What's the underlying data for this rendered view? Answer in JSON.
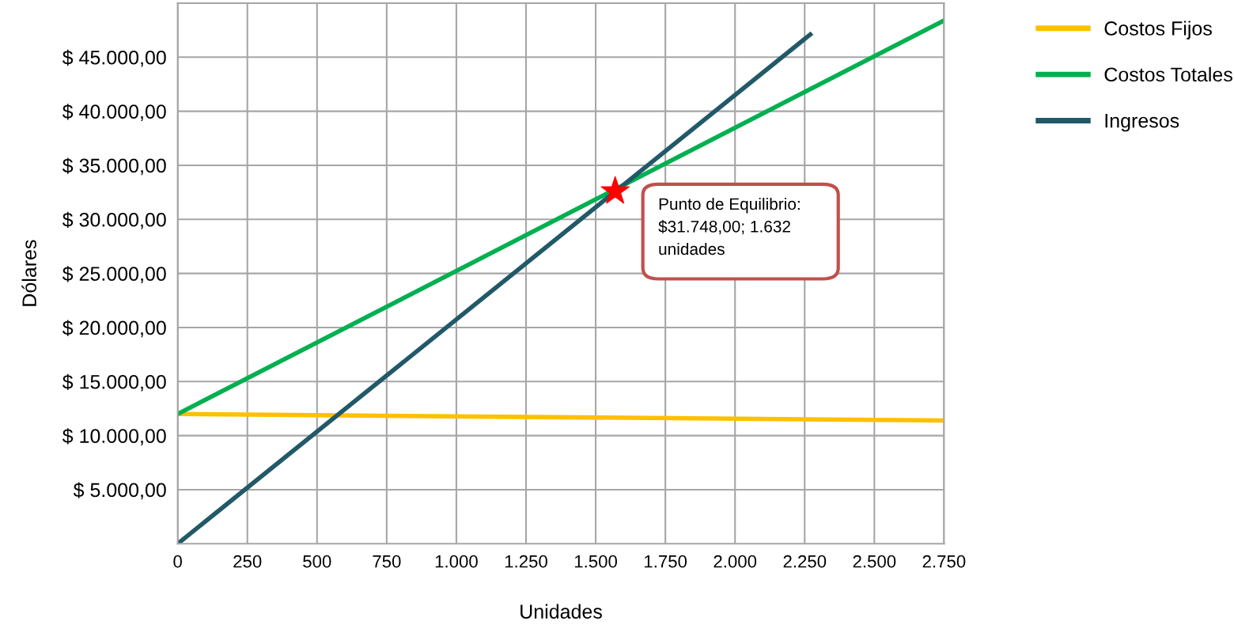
{
  "chart_data": {
    "type": "line",
    "xlabel": "Unidades",
    "ylabel": "Dólares",
    "xlim": [
      0,
      2750
    ],
    "ylim": [
      0,
      50000
    ],
    "xticks": [
      0,
      250,
      500,
      750,
      {
        "value": 1000,
        "label": "1.000"
      },
      {
        "value": 1250,
        "label": "1.250"
      },
      {
        "value": 1500,
        "label": "1.500"
      },
      {
        "value": 1750,
        "label": "1.750"
      },
      {
        "value": 2000,
        "label": "2.000"
      },
      {
        "value": 2250,
        "label": "2.250"
      },
      {
        "value": 2500,
        "label": "2.500"
      },
      {
        "value": 2750,
        "label": "2.750"
      }
    ],
    "yticks": [
      {
        "value": 5000,
        "label": "$ 5.000,00"
      },
      {
        "value": 10000,
        "label": "$ 10.000,00"
      },
      {
        "value": 15000,
        "label": "$ 15.000,00"
      },
      {
        "value": 20000,
        "label": "$ 20.000,00"
      },
      {
        "value": 25000,
        "label": "$ 25.000,00"
      },
      {
        "value": 30000,
        "label": "$ 30.000,00"
      },
      {
        "value": 35000,
        "label": "$ 35.000,00"
      },
      {
        "value": 40000,
        "label": "$ 40.000,00"
      },
      {
        "value": 45000,
        "label": "$ 45.000,00"
      },
      {
        "value": 50000,
        "label": null
      }
    ],
    "series": [
      {
        "name": "Costos Fijos",
        "color": "#ffc000",
        "x": [
          0,
          2750
        ],
        "values": [
          12000,
          11400
        ]
      },
      {
        "name": "Costos Totales",
        "color": "#00b050",
        "x": [
          0,
          2750
        ],
        "values": [
          12000,
          48400
        ]
      },
      {
        "name": "Ingresos",
        "color": "#215968",
        "x": [
          0,
          2270
        ],
        "values": [
          0,
          47100
        ]
      },
      {
        "type": "scatter",
        "marker": "star",
        "color": "#ff0000",
        "x": [
          1570
        ],
        "values": [
          32600
        ]
      }
    ],
    "annotations": [
      "Punto de Equilibrio:\n$31.748,00; 1.632\nunidades"
    ],
    "grid": true,
    "legend": "right",
    "marker": "none",
    "line_style": "solid"
  }
}
